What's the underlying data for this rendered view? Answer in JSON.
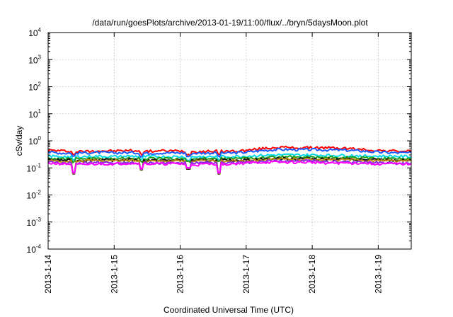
{
  "chart_data": {
    "type": "line",
    "title": "/data/run/goesPlots/archive/2013-01-19/11:00/flux/../bryn/5daysMoon.plot",
    "xlabel": "Coordinated Universal Time (UTC)",
    "ylabel": "cSv/day",
    "yscale": "log",
    "ylim": [
      0.0001,
      10000
    ],
    "xlim": [
      "2013-01-14T00:00",
      "2013-01-19T12:00"
    ],
    "grid": true,
    "y_ticks": [
      {
        "base": "10",
        "exp": "-4",
        "value": 0.0001
      },
      {
        "base": "10",
        "exp": "-3",
        "value": 0.001
      },
      {
        "base": "10",
        "exp": "-2",
        "value": 0.01
      },
      {
        "base": "10",
        "exp": "-1",
        "value": 0.1
      },
      {
        "base": "10",
        "exp": "0",
        "value": 1
      },
      {
        "base": "10",
        "exp": "1",
        "value": 10
      },
      {
        "base": "10",
        "exp": "2",
        "value": 100
      },
      {
        "base": "10",
        "exp": "3",
        "value": 1000
      },
      {
        "base": "10",
        "exp": "4",
        "value": 10000
      }
    ],
    "x_ticks": [
      {
        "label": "2013-1-14",
        "date": "2013-01-14T00:00"
      },
      {
        "label": "2013-1-15",
        "date": "2013-01-15T00:00"
      },
      {
        "label": "2013-1-16",
        "date": "2013-01-16T00:00"
      },
      {
        "label": "2013-1-17",
        "date": "2013-01-17T00:00"
      },
      {
        "label": "2013-1-18",
        "date": "2013-01-18T00:00"
      },
      {
        "label": "2013-1-19",
        "date": "2013-01-19T00:00"
      }
    ],
    "x": [
      "2013-01-14T00:00",
      "2013-01-14T06:00",
      "2013-01-14T12:00",
      "2013-01-14T18:00",
      "2013-01-15T00:00",
      "2013-01-15T06:00",
      "2013-01-15T12:00",
      "2013-01-15T18:00",
      "2013-01-16T00:00",
      "2013-01-16T06:00",
      "2013-01-16T12:00",
      "2013-01-16T18:00",
      "2013-01-17T00:00",
      "2013-01-17T06:00",
      "2013-01-17T12:00",
      "2013-01-17T18:00",
      "2013-01-18T00:00",
      "2013-01-18T06:00",
      "2013-01-18T12:00",
      "2013-01-18T18:00",
      "2013-01-19T00:00",
      "2013-01-19T06:00",
      "2013-01-19T12:00"
    ],
    "series": [
      {
        "color": "#ff0000",
        "values": [
          0.45,
          0.42,
          0.4,
          0.43,
          0.42,
          0.44,
          0.41,
          0.43,
          0.42,
          0.4,
          0.42,
          0.41,
          0.44,
          0.52,
          0.58,
          0.55,
          0.56,
          0.55,
          0.53,
          0.48,
          0.44,
          0.42,
          0.41
        ]
      },
      {
        "color": "#1a5aff",
        "values": [
          0.38,
          0.35,
          0.36,
          0.37,
          0.36,
          0.37,
          0.35,
          0.36,
          0.36,
          0.35,
          0.36,
          0.35,
          0.38,
          0.44,
          0.48,
          0.47,
          0.47,
          0.46,
          0.45,
          0.42,
          0.38,
          0.36,
          0.36
        ]
      },
      {
        "color": "#00d8e8",
        "values": [
          0.27,
          0.26,
          0.26,
          0.27,
          0.26,
          0.27,
          0.26,
          0.26,
          0.26,
          0.26,
          0.26,
          0.26,
          0.27,
          0.29,
          0.3,
          0.3,
          0.3,
          0.29,
          0.29,
          0.28,
          0.27,
          0.27,
          0.26
        ]
      },
      {
        "color": "#1a9e1a",
        "values": [
          0.23,
          0.22,
          0.22,
          0.22,
          0.22,
          0.23,
          0.22,
          0.22,
          0.22,
          0.22,
          0.22,
          0.22,
          0.23,
          0.24,
          0.25,
          0.25,
          0.25,
          0.24,
          0.24,
          0.23,
          0.23,
          0.22,
          0.22
        ]
      },
      {
        "color": "#111111",
        "values": [
          0.2,
          0.19,
          0.19,
          0.2,
          0.19,
          0.2,
          0.19,
          0.19,
          0.19,
          0.19,
          0.19,
          0.19,
          0.2,
          0.21,
          0.22,
          0.22,
          0.22,
          0.21,
          0.21,
          0.2,
          0.2,
          0.19,
          0.19
        ]
      },
      {
        "color": "#b8860b",
        "values": [
          0.19,
          0.18,
          0.18,
          0.19,
          0.18,
          0.19,
          0.18,
          0.18,
          0.18,
          0.18,
          0.18,
          0.18,
          0.19,
          0.2,
          0.21,
          0.21,
          0.21,
          0.2,
          0.2,
          0.19,
          0.19,
          0.18,
          0.18
        ]
      },
      {
        "color": "#8a2be2",
        "values": [
          0.16,
          0.15,
          0.15,
          0.16,
          0.15,
          0.16,
          0.15,
          0.15,
          0.15,
          0.15,
          0.15,
          0.15,
          0.16,
          0.17,
          0.18,
          0.18,
          0.18,
          0.17,
          0.17,
          0.16,
          0.16,
          0.15,
          0.15
        ]
      },
      {
        "color": "#ff00ff",
        "values": [
          0.15,
          0.14,
          0.13,
          0.14,
          0.14,
          0.15,
          0.14,
          0.14,
          0.14,
          0.13,
          0.14,
          0.14,
          0.15,
          0.16,
          0.16,
          0.16,
          0.16,
          0.15,
          0.15,
          0.15,
          0.14,
          0.14,
          0.14
        ]
      }
    ],
    "dips": [
      {
        "date": "2013-01-14T09:30",
        "value": 0.05
      },
      {
        "date": "2013-01-15T10:00",
        "value": 0.07
      },
      {
        "date": "2013-01-16T03:00",
        "value": 0.075
      },
      {
        "date": "2013-01-16T14:00",
        "value": 0.05
      }
    ]
  }
}
